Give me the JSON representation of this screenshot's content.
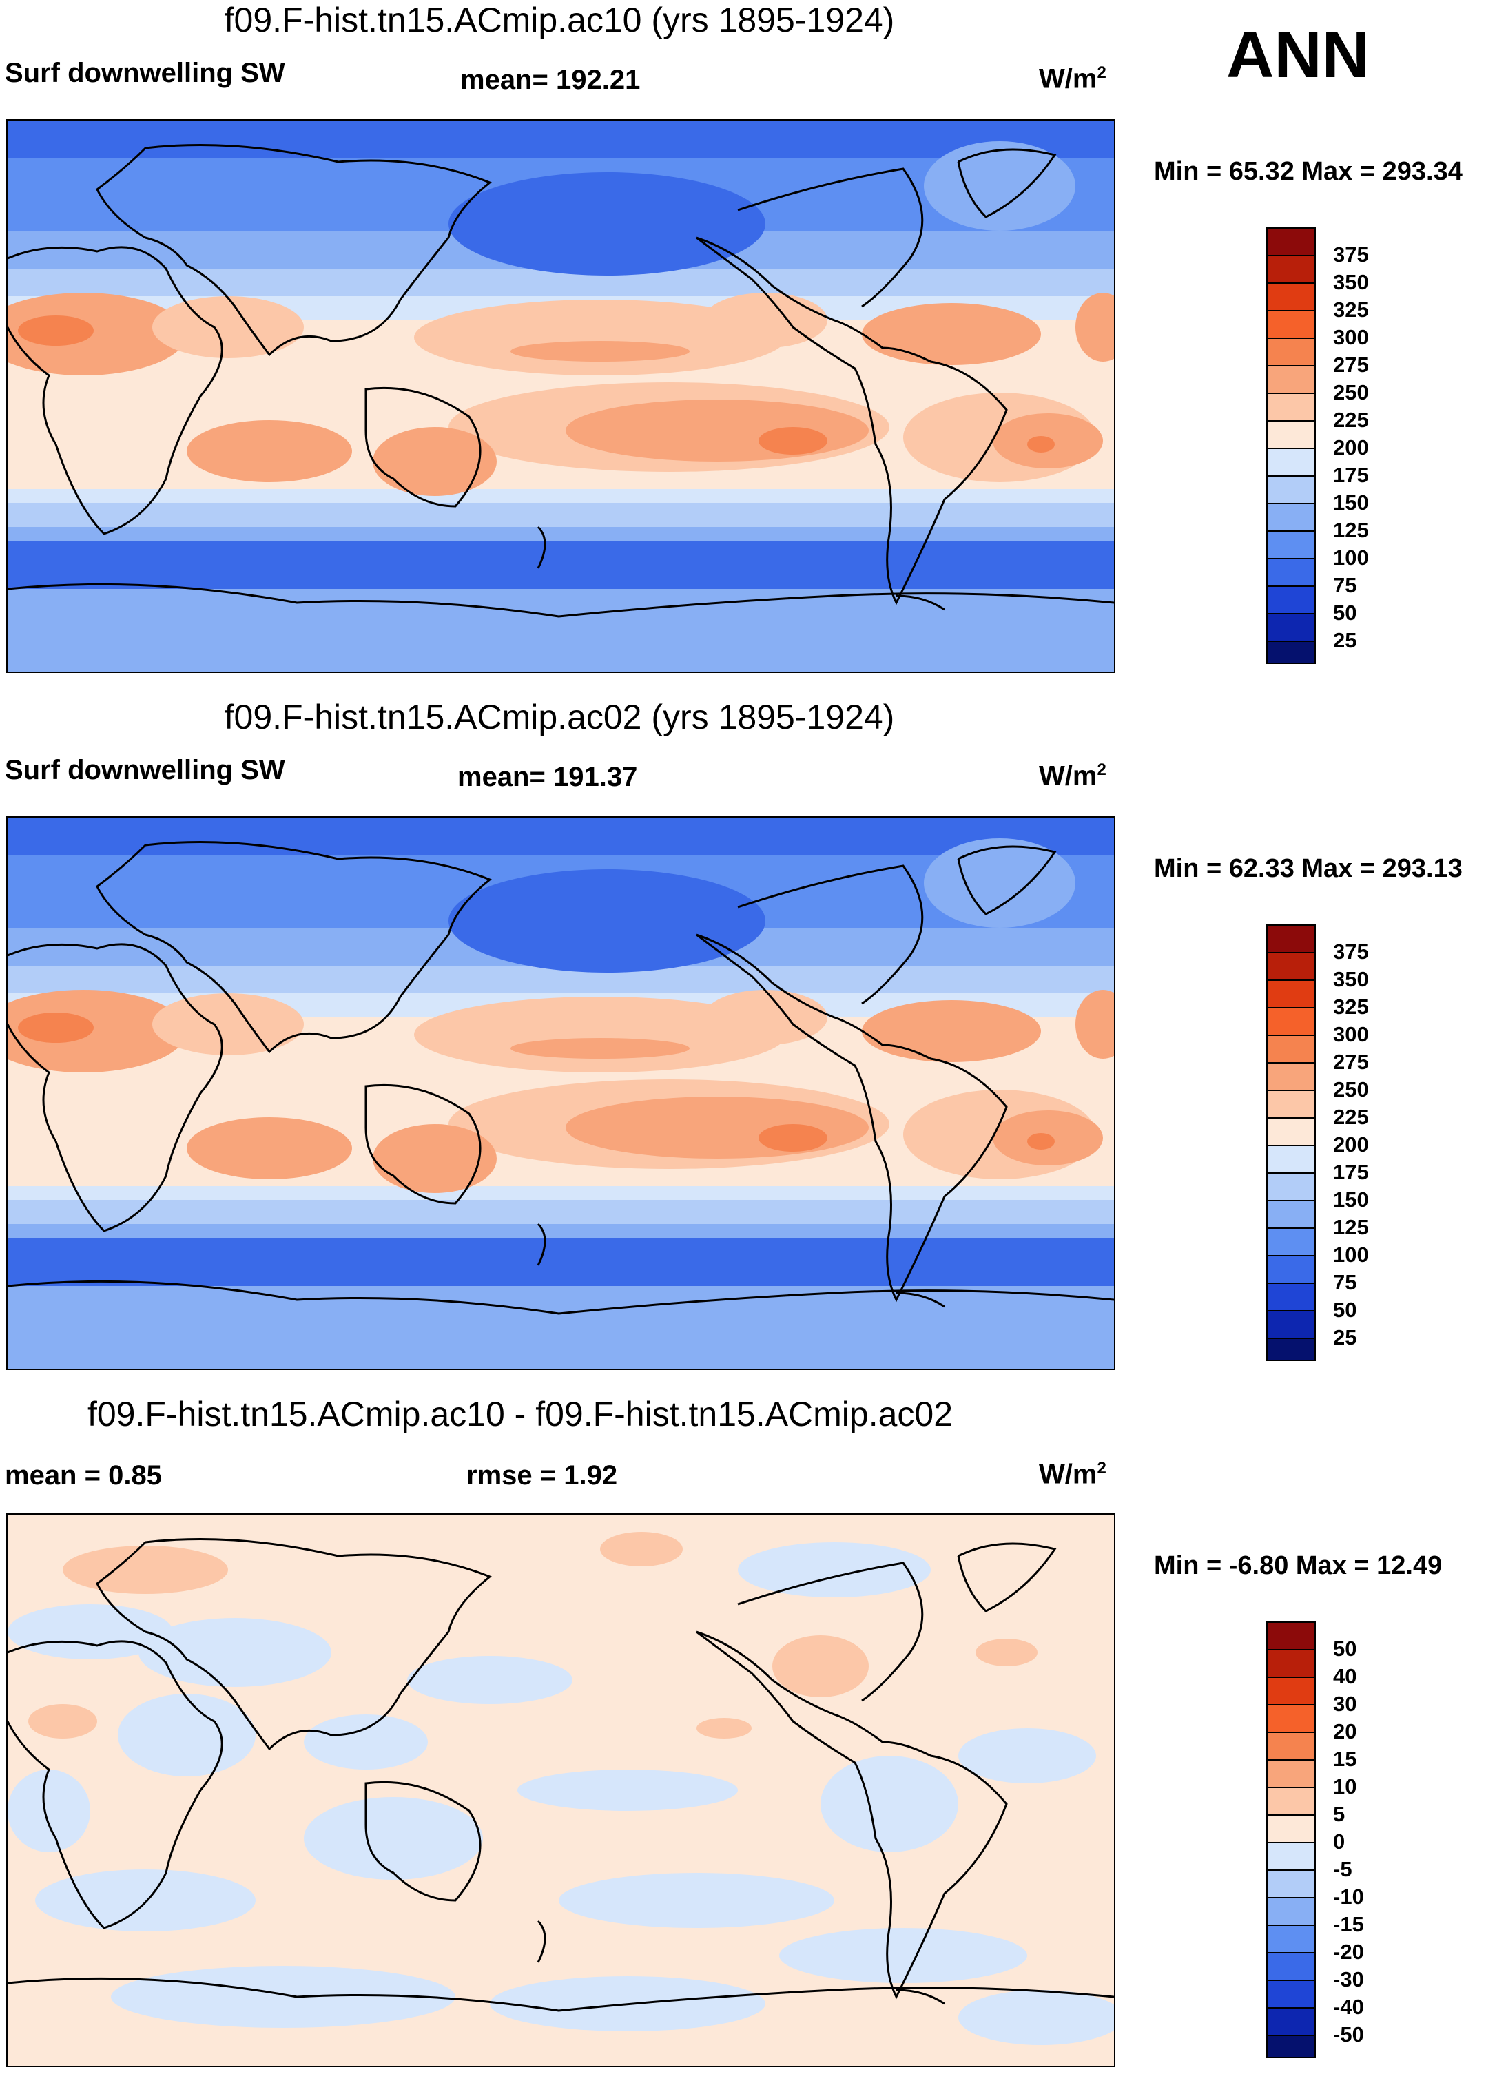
{
  "season": "ANN",
  "panels": [
    {
      "title": "f09.F-hist.tn15.ACmip.ac10 (yrs 1895-1924)",
      "left": "Surf downwelling SW",
      "center": "mean= 192.21",
      "units_base": "W/m",
      "units_sup": "2",
      "minmax": "Min =  65.32 Max = 293.34",
      "colorbar": {
        "labels": [
          "375",
          "350",
          "325",
          "300",
          "275",
          "250",
          "225",
          "200",
          "175",
          "150",
          "125",
          "100",
          "75",
          "50",
          "25"
        ],
        "colors": [
          "#8c0a0a",
          "#b81f0a",
          "#e03c12",
          "#f5612a",
          "#f5834f",
          "#f8a57b",
          "#fcc7a8",
          "#fde8d8",
          "#d6e6fb",
          "#b2cdf8",
          "#88aff4",
          "#5e8ff2",
          "#3a6ae8",
          "#1f45d6",
          "#0d26b0",
          "#05116e"
        ]
      }
    },
    {
      "title": "f09.F-hist.tn15.ACmip.ac02 (yrs 1895-1924)",
      "left": "Surf downwelling SW",
      "center": "mean= 191.37",
      "units_base": "W/m",
      "units_sup": "2",
      "minmax": "Min =  62.33 Max = 293.13",
      "colorbar": {
        "labels": [
          "375",
          "350",
          "325",
          "300",
          "275",
          "250",
          "225",
          "200",
          "175",
          "150",
          "125",
          "100",
          "75",
          "50",
          "25"
        ],
        "colors": [
          "#8c0a0a",
          "#b81f0a",
          "#e03c12",
          "#f5612a",
          "#f5834f",
          "#f8a57b",
          "#fcc7a8",
          "#fde8d8",
          "#d6e6fb",
          "#b2cdf8",
          "#88aff4",
          "#5e8ff2",
          "#3a6ae8",
          "#1f45d6",
          "#0d26b0",
          "#05116e"
        ]
      }
    },
    {
      "title": "f09.F-hist.tn15.ACmip.ac10 - f09.F-hist.tn15.ACmip.ac02",
      "left": "mean =   0.85",
      "center": "rmse =   1.92",
      "units_base": "W/m",
      "units_sup": "2",
      "minmax": "Min =  -6.80 Max =  12.49",
      "colorbar": {
        "labels": [
          "50",
          "40",
          "30",
          "20",
          "15",
          "10",
          "5",
          "0",
          "-5",
          "-10",
          "-15",
          "-20",
          "-30",
          "-40",
          "-50"
        ],
        "colors": [
          "#8c0a0a",
          "#b81f0a",
          "#e03c12",
          "#f5612a",
          "#f5834f",
          "#f8a57b",
          "#fcc7a8",
          "#fde8d8",
          "#d6e6fb",
          "#b2cdf8",
          "#88aff4",
          "#5e8ff2",
          "#3a6ae8",
          "#1f45d6",
          "#0d26b0",
          "#05116e"
        ]
      }
    }
  ]
}
